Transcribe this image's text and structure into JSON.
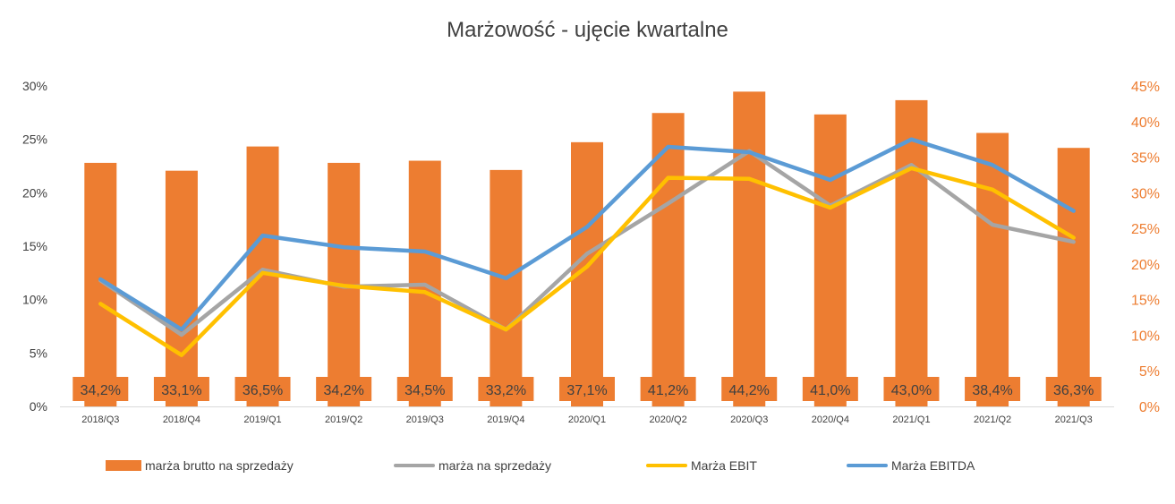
{
  "chart_data": {
    "type": "bar",
    "title": "Marżowość - ujęcie kwartalne",
    "categories": [
      "2018/Q3",
      "2018/Q4",
      "2019/Q1",
      "2019/Q2",
      "2019/Q3",
      "2019/Q4",
      "2020/Q1",
      "2020/Q2",
      "2020/Q3",
      "2020/Q4",
      "2021/Q1",
      "2021/Q2",
      "2021/Q3"
    ],
    "left_axis": {
      "ticks": [
        "0%",
        "5%",
        "10%",
        "15%",
        "20%",
        "25%",
        "30%"
      ],
      "ylim": [
        0,
        30
      ],
      "color": "#404040"
    },
    "right_axis": {
      "ticks": [
        "0%",
        "5%",
        "10%",
        "15%",
        "20%",
        "25%",
        "30%",
        "35%",
        "40%",
        "45%"
      ],
      "ylim": [
        0,
        45
      ],
      "color": "#ED7D31"
    },
    "series": [
      {
        "name": "marża brutto na sprzedaży",
        "kind": "bar",
        "axis": "right",
        "color": "#ED7D31",
        "values": [
          34.2,
          33.1,
          36.5,
          34.2,
          34.5,
          33.2,
          37.1,
          41.2,
          44.2,
          41.0,
          43.0,
          38.4,
          36.3
        ],
        "labels": [
          "34,2%",
          "33,1%",
          "36,5%",
          "34,2%",
          "34,5%",
          "33,2%",
          "37,1%",
          "41,2%",
          "44,2%",
          "41,0%",
          "43,0%",
          "38,4%",
          "36,3%"
        ]
      },
      {
        "name": "marża na sprzedaży",
        "kind": "line",
        "axis": "left",
        "color": "#A5A5A5",
        "values": [
          11.8,
          6.7,
          12.8,
          11.2,
          11.4,
          7.2,
          14.3,
          19.0,
          23.9,
          18.8,
          22.6,
          17.0,
          15.4
        ]
      },
      {
        "name": "Marża EBIT",
        "kind": "line",
        "axis": "left",
        "color": "#FFC000",
        "values": [
          9.6,
          4.8,
          12.5,
          11.3,
          10.7,
          7.2,
          13.1,
          21.4,
          21.3,
          18.6,
          22.3,
          20.3,
          15.8
        ]
      },
      {
        "name": "Marża EBITDA",
        "kind": "line",
        "axis": "left",
        "color": "#5B9BD5",
        "values": [
          11.9,
          7.2,
          16.0,
          14.9,
          14.5,
          12.0,
          16.8,
          24.3,
          23.8,
          21.2,
          25.0,
          22.6,
          18.3
        ]
      }
    ],
    "legend_position": "bottom",
    "grid": false
  }
}
